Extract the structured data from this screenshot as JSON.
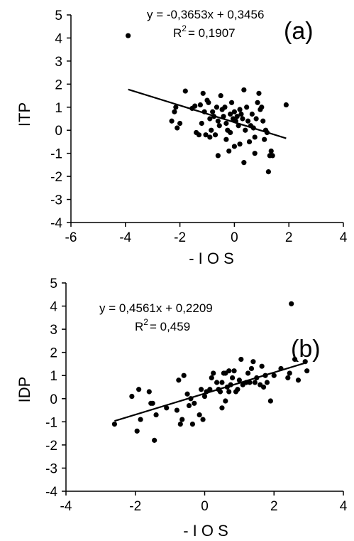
{
  "chart_data": [
    {
      "type": "scatter",
      "panel_label": "(a)",
      "xlabel": "- I O S",
      "ylabel": "ITP",
      "xlim": [
        -6,
        4
      ],
      "ylim": [
        -4,
        5
      ],
      "xticks": [
        -6,
        -4,
        -2,
        0,
        2,
        4
      ],
      "yticks": [
        -4,
        -3,
        -2,
        -1,
        0,
        1,
        2,
        3,
        4,
        5
      ],
      "grid": false,
      "equation": "y = -0,3653x + 0,3456",
      "r2_prefix": "R",
      "r2_sup": "2",
      "r2_value": "= 0,1907",
      "trendline": {
        "slope": -0.3653,
        "intercept": 0.3456,
        "x_range": [
          -3.9,
          1.9
        ]
      },
      "points": [
        [
          -3.9,
          4.1
        ],
        [
          -2.3,
          0.4
        ],
        [
          -2.2,
          0.8
        ],
        [
          -2.15,
          1.0
        ],
        [
          -2.1,
          0.1
        ],
        [
          -2.0,
          0.3
        ],
        [
          -1.8,
          1.7
        ],
        [
          -1.55,
          0.95
        ],
        [
          -1.45,
          1.05
        ],
        [
          -1.4,
          -0.1
        ],
        [
          -1.3,
          -0.2
        ],
        [
          -1.25,
          1.1
        ],
        [
          -1.2,
          0.3
        ],
        [
          -1.15,
          1.6
        ],
        [
          -1.1,
          0.8
        ],
        [
          -1.05,
          -0.2
        ],
        [
          -1.0,
          1.3
        ],
        [
          -0.95,
          1.2
        ],
        [
          -0.9,
          0.5
        ],
        [
          -0.85,
          0.0
        ],
        [
          -0.8,
          0.8
        ],
        [
          -0.75,
          0.6
        ],
        [
          -0.7,
          -0.2
        ],
        [
          -0.65,
          1.0
        ],
        [
          -0.6,
          -1.1
        ],
        [
          -0.6,
          0.4
        ],
        [
          -0.55,
          0.2
        ],
        [
          -0.5,
          1.5
        ],
        [
          -0.45,
          0.9
        ],
        [
          -0.4,
          0.6
        ],
        [
          -0.35,
          1.0
        ],
        [
          -0.3,
          0.3
        ],
        [
          -0.25,
          0.0
        ],
        [
          -0.2,
          -0.9
        ],
        [
          -0.15,
          0.7
        ],
        [
          -0.1,
          1.2
        ],
        [
          -0.05,
          0.5
        ],
        [
          0.0,
          -0.7
        ],
        [
          0.0,
          0.8
        ],
        [
          0.05,
          0.4
        ],
        [
          0.1,
          0.6
        ],
        [
          0.15,
          0.2
        ],
        [
          0.2,
          0.9
        ],
        [
          0.25,
          0.7
        ],
        [
          0.3,
          0.5
        ],
        [
          0.35,
          -1.4
        ],
        [
          0.35,
          1.75
        ],
        [
          0.4,
          0.0
        ],
        [
          0.45,
          1.0
        ],
        [
          0.5,
          0.4
        ],
        [
          0.55,
          -0.5
        ],
        [
          0.6,
          0.2
        ],
        [
          0.65,
          0.7
        ],
        [
          0.7,
          0.1
        ],
        [
          0.75,
          -0.3
        ],
        [
          0.8,
          0.5
        ],
        [
          0.85,
          1.2
        ],
        [
          0.9,
          1.6
        ],
        [
          0.95,
          0.9
        ],
        [
          1.0,
          1.0
        ],
        [
          1.05,
          0.4
        ],
        [
          1.1,
          -0.4
        ],
        [
          1.15,
          0.0
        ],
        [
          1.2,
          -0.1
        ],
        [
          1.25,
          -1.8
        ],
        [
          1.3,
          -1.1
        ],
        [
          1.35,
          -0.9
        ],
        [
          1.4,
          -1.1
        ],
        [
          1.9,
          1.1
        ],
        [
          -0.9,
          -0.3
        ],
        [
          -0.3,
          -0.4
        ],
        [
          0.2,
          -0.6
        ],
        [
          0.75,
          -1.0
        ],
        [
          -0.15,
          -0.1
        ]
      ]
    },
    {
      "type": "scatter",
      "panel_label": "(b)",
      "xlabel": "- I O S",
      "ylabel": "IDP",
      "xlim": [
        -4,
        4
      ],
      "ylim": [
        -4,
        5
      ],
      "xticks": [
        -4,
        -2,
        0,
        2,
        4
      ],
      "yticks": [
        -4,
        -3,
        -2,
        -1,
        0,
        1,
        2,
        3,
        4,
        5
      ],
      "grid": false,
      "equation": "y = 0,4561x + 0,2209",
      "r2_prefix": "R",
      "r2_sup": "2",
      "r2_value": "= 0,459",
      "trendline": {
        "slope": 0.4561,
        "intercept": 0.2209,
        "x_range": [
          -2.6,
          2.95
        ]
      },
      "points": [
        [
          -2.6,
          -1.1
        ],
        [
          -2.1,
          0.1
        ],
        [
          -1.95,
          -1.4
        ],
        [
          -1.9,
          0.4
        ],
        [
          -1.85,
          -0.9
        ],
        [
          -1.6,
          0.3
        ],
        [
          -1.55,
          -0.2
        ],
        [
          -1.5,
          -0.2
        ],
        [
          -1.45,
          -1.8
        ],
        [
          -1.4,
          -0.7
        ],
        [
          -1.1,
          -0.4
        ],
        [
          -0.75,
          0.8
        ],
        [
          -0.7,
          -1.1
        ],
        [
          -0.65,
          -0.9
        ],
        [
          -0.6,
          1.0
        ],
        [
          -0.5,
          0.2
        ],
        [
          -0.45,
          -0.3
        ],
        [
          -0.4,
          0.0
        ],
        [
          -0.35,
          -1.1
        ],
        [
          -0.3,
          -0.2
        ],
        [
          -0.15,
          -0.7
        ],
        [
          -0.1,
          0.4
        ],
        [
          -0.05,
          -0.9
        ],
        [
          0.0,
          0.1
        ],
        [
          0.05,
          0.3
        ],
        [
          0.15,
          0.4
        ],
        [
          0.2,
          0.9
        ],
        [
          0.25,
          1.1
        ],
        [
          0.4,
          0.4
        ],
        [
          0.45,
          0.3
        ],
        [
          0.5,
          -0.4
        ],
        [
          0.5,
          0.7
        ],
        [
          0.55,
          1.1
        ],
        [
          0.6,
          -0.1
        ],
        [
          0.65,
          0.5
        ],
        [
          0.7,
          0.3
        ],
        [
          0.75,
          0.6
        ],
        [
          0.8,
          0.9
        ],
        [
          0.85,
          1.2
        ],
        [
          0.9,
          0.3
        ],
        [
          0.95,
          0.4
        ],
        [
          1.0,
          0.8
        ],
        [
          1.05,
          1.7
        ],
        [
          1.1,
          0.6
        ],
        [
          1.2,
          0.7
        ],
        [
          1.25,
          1.1
        ],
        [
          1.3,
          0.7
        ],
        [
          1.4,
          1.6
        ],
        [
          1.45,
          0.7
        ],
        [
          1.5,
          0.9
        ],
        [
          1.6,
          0.6
        ],
        [
          1.65,
          1.4
        ],
        [
          1.7,
          0.5
        ],
        [
          1.75,
          1.0
        ],
        [
          1.8,
          0.7
        ],
        [
          1.9,
          -0.1
        ],
        [
          2.0,
          1.0
        ],
        [
          2.2,
          1.3
        ],
        [
          2.4,
          0.9
        ],
        [
          2.45,
          1.1
        ],
        [
          2.5,
          4.1
        ],
        [
          2.6,
          1.7
        ],
        [
          2.7,
          0.8
        ],
        [
          2.9,
          1.6
        ],
        [
          2.95,
          1.2
        ],
        [
          0.6,
          1.1
        ],
        [
          1.35,
          1.3
        ],
        [
          0.35,
          0.7
        ],
        [
          -0.8,
          -0.5
        ],
        [
          0.7,
          1.2
        ]
      ]
    }
  ]
}
